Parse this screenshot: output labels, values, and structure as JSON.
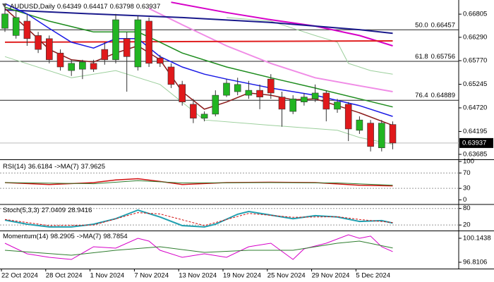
{
  "chart_data": [
    {
      "type": "candlestick",
      "symbol": "AUDUSD,Daily",
      "categories": [
        "22 Oct 2024",
        null,
        null,
        null,
        "28 Oct 2024",
        null,
        null,
        null,
        "1 Nov 2024",
        null,
        null,
        null,
        "7 Nov 2024",
        null,
        null,
        null,
        "13 Nov 2024",
        null,
        null,
        null,
        "19 Nov 2024",
        null,
        null,
        null,
        "25 Nov 2024",
        null,
        null,
        null,
        "29 Nov 2024",
        null,
        null,
        null,
        "5 Dec 2024",
        null,
        null,
        null
      ],
      "open": [
        0.6649,
        0.6633,
        0.6665,
        0.6633,
        0.6626,
        0.6594,
        0.6555,
        0.6558,
        0.6571,
        0.6602,
        0.6579,
        0.6626,
        0.6563,
        0.6665,
        0.6583,
        0.6563,
        0.6524,
        0.648,
        0.6449,
        0.6458,
        0.65,
        0.6508,
        0.65,
        0.6511,
        0.6536,
        0.6496,
        0.6464,
        0.6485,
        0.6492,
        0.6505,
        0.6469,
        0.648,
        0.6422,
        0.6438,
        0.6383,
        0.64349
      ],
      "high": [
        0.6696,
        0.6688,
        0.6681,
        0.6641,
        0.6633,
        0.6602,
        0.6579,
        0.6579,
        0.6579,
        0.6618,
        0.6681,
        0.6641,
        0.6677,
        0.6673,
        0.659,
        0.6571,
        0.6532,
        0.6492,
        0.6464,
        0.6511,
        0.6536,
        0.6539,
        0.6532,
        0.6524,
        0.6547,
        0.6508,
        0.65,
        0.6505,
        0.6524,
        0.6511,
        0.6492,
        0.6485,
        0.6453,
        0.6445,
        0.6445,
        0.64417
      ],
      "low": [
        0.6641,
        0.6626,
        0.661,
        0.6594,
        0.6571,
        0.6555,
        0.6543,
        0.6536,
        0.6552,
        0.6568,
        0.6571,
        0.6508,
        0.6555,
        0.6563,
        0.6563,
        0.6516,
        0.6477,
        0.6438,
        0.6442,
        0.6453,
        0.6496,
        0.65,
        0.6492,
        0.6469,
        0.6492,
        0.643,
        0.6458,
        0.6477,
        0.6485,
        0.6442,
        0.6461,
        0.6398,
        0.6414,
        0.6375,
        0.6375,
        0.63798
      ],
      "close": [
        0.6681,
        0.6673,
        0.6626,
        0.6602,
        0.6579,
        0.6563,
        0.6571,
        0.6574,
        0.6558,
        0.6579,
        0.6668,
        0.6586,
        0.6668,
        0.6571,
        0.6571,
        0.6524,
        0.6485,
        0.6449,
        0.6458,
        0.65,
        0.6527,
        0.6524,
        0.6511,
        0.6496,
        0.6505,
        0.6469,
        0.6492,
        0.6496,
        0.6505,
        0.6469,
        0.6485,
        0.6425,
        0.6445,
        0.6386,
        0.6438,
        0.63937
      ],
      "up_color": "#22b522",
      "down_color": "#e0191b",
      "series": [
        {
          "color": "#9ccf9c",
          "width": 1,
          "x": [
            20,
            24,
            26,
            28,
            30,
            31,
            33,
            35
          ],
          "values": [
            0.6673,
            0.6665,
            0.6649,
            0.6633,
            0.6618,
            0.6571,
            0.6555,
            0.6547
          ]
        },
        {
          "color": "#9ccf9c",
          "width": 1,
          "x": [
            0,
            6,
            10,
            14,
            18,
            24,
            30,
            32,
            35
          ],
          "values": [
            0.6586,
            0.6539,
            0.6555,
            0.6524,
            0.6445,
            0.6433,
            0.6422,
            0.6406,
            0.6391
          ]
        },
        {
          "color": "#f08ce6",
          "width": 2,
          "x": [
            13,
            16,
            20,
            24,
            28,
            32,
            35
          ],
          "values": [
            0.6693,
            0.6657,
            0.661,
            0.6571,
            0.6539,
            0.6521,
            0.6508
          ]
        },
        {
          "color": "#d600c8",
          "width": 2,
          "x": [
            15,
            20,
            24,
            28,
            32,
            35
          ],
          "values": [
            0.6707,
            0.6684,
            0.6668,
            0.6654,
            0.6633,
            0.661
          ]
        },
        {
          "color": "#e02020",
          "width": 2,
          "x": [
            0,
            35
          ],
          "values": [
            0.6618,
            0.6621
          ]
        },
        {
          "color": "#1a1a8c",
          "width": 2,
          "x": [
            0,
            8,
            16,
            24,
            32,
            35
          ],
          "values": [
            0.669,
            0.6681,
            0.6673,
            0.6662,
            0.6646,
            0.6638
          ]
        },
        {
          "color": "#1e8c1e",
          "width": 1.5,
          "x": [
            0,
            4,
            8,
            12,
            14,
            16,
            20,
            24,
            28,
            32,
            35
          ],
          "values": [
            0.6696,
            0.6665,
            0.6641,
            0.6641,
            0.6618,
            0.6594,
            0.6563,
            0.6539,
            0.6516,
            0.6492,
            0.6474
          ]
        },
        {
          "color": "#1a1ae6",
          "width": 1.5,
          "x": [
            0,
            2,
            4,
            6,
            8,
            10,
            12,
            14,
            16,
            18,
            20,
            24,
            28,
            32,
            35
          ],
          "values": [
            0.6704,
            0.6681,
            0.6649,
            0.6618,
            0.6605,
            0.6626,
            0.6626,
            0.6586,
            0.6563,
            0.6547,
            0.6536,
            0.6516,
            0.65,
            0.6477,
            0.6453
          ]
        },
        {
          "color": "#8b1a1a",
          "width": 1.5,
          "x": [
            0,
            2,
            4,
            6,
            8,
            10,
            12,
            14,
            16,
            18,
            20,
            22,
            24,
            26,
            28,
            30,
            32,
            35
          ],
          "values": [
            0.6693,
            0.6649,
            0.6602,
            0.6579,
            0.6574,
            0.6594,
            0.661,
            0.6579,
            0.6508,
            0.6469,
            0.6485,
            0.6505,
            0.65,
            0.649,
            0.6492,
            0.6477,
            0.6461,
            0.6433
          ]
        }
      ],
      "levels": [
        {
          "label": "50.0",
          "value": 0.66457
        },
        {
          "label": "61.8",
          "value": 0.65756
        },
        {
          "label": "76.4",
          "value": 0.64889
        }
      ],
      "ylim": [
        0.6359,
        0.6712
      ],
      "yticks": [
        0.66805,
        {
          "value": 0.6629,
          "label": "0.66290"
        },
        {
          "value": 0.6577,
          "label": "0.65770"
        },
        0.65245,
        {
          "value": 0.6472,
          "label": "0.64720"
        },
        0.64195,
        0.63685
      ]
    },
    {
      "type": "line",
      "label": "RSI(14)",
      "ma_label": "->MA(7)",
      "series": [
        {
          "color": "#d01010",
          "width": 1.5,
          "x": [
            0,
            4,
            8,
            10,
            12,
            14,
            16,
            20,
            24,
            28,
            32,
            35
          ],
          "values": [
            45,
            40,
            45,
            52,
            55,
            48,
            40,
            45,
            46,
            45,
            38,
            36.6184
          ]
        },
        {
          "color": "#2e7d2e",
          "width": 1,
          "x": [
            0,
            8,
            12,
            16,
            24,
            30,
            35
          ],
          "values": [
            45,
            42,
            50,
            44,
            45,
            44,
            37.9625
          ]
        }
      ],
      "ylim": [
        -10,
        100
      ],
      "yticks": [
        100,
        70,
        30,
        0
      ],
      "grid_ticks": [
        70,
        30
      ],
      "grid": true
    },
    {
      "type": "line",
      "label": "Stoch(5,3,3)",
      "series": [
        {
          "color": "#20a0b0",
          "width": 2,
          "x": [
            0,
            2,
            4,
            6,
            8,
            10,
            12,
            14,
            16,
            18,
            19,
            21,
            22,
            24,
            26,
            28,
            30,
            32,
            34,
            35
          ],
          "values": [
            38,
            23,
            13,
            13,
            23,
            43,
            74,
            49,
            18,
            13,
            23,
            59,
            69,
            56,
            43,
            54,
            49,
            33,
            36,
            27.0409
          ]
        },
        {
          "color": "#d01010",
          "width": 1,
          "dashed": true,
          "x": [
            0,
            4,
            8,
            12,
            14,
            18,
            22,
            26,
            30,
            32,
            35
          ],
          "values": [
            40,
            18,
            20,
            65,
            60,
            18,
            62,
            48,
            50,
            40,
            28.9416
          ]
        }
      ],
      "ylim": [
        0,
        92
      ],
      "yticks": [
        80,
        20
      ],
      "grid_ticks": [
        80,
        20
      ],
      "grid": true
    },
    {
      "type": "line",
      "label": "Momentum(14)",
      "ma_label": "->MA(7)",
      "series": [
        {
          "color": "#d600c8",
          "width": 1,
          "x": [
            0,
            2,
            4,
            6,
            8,
            10,
            12,
            13,
            14,
            16,
            18,
            20,
            22,
            24,
            26,
            27,
            29,
            31,
            32,
            33,
            34,
            35
          ],
          "values": [
            99.46,
            97.99,
            97.5,
            97.2,
            98.97,
            98.77,
            100.14,
            99.75,
            98.48,
            97.5,
            97.99,
            97.5,
            98.97,
            99.46,
            97.2,
            98.67,
            99.46,
            100.63,
            100.14,
            100.44,
            98.97,
            98.2905
          ]
        },
        {
          "color": "#2e7d2e",
          "width": 1,
          "x": [
            0,
            6,
            10,
            14,
            18,
            22,
            26,
            30,
            32,
            35
          ],
          "values": [
            98.48,
            97.79,
            98.48,
            98.97,
            98.18,
            98.48,
            98.48,
            99.46,
            99.75,
            98.7854
          ]
        }
      ],
      "ylim": [
        95.93,
        101.12
      ],
      "yticks": [
        100.1438,
        96.8106
      ],
      "grid": false
    }
  ]
}
